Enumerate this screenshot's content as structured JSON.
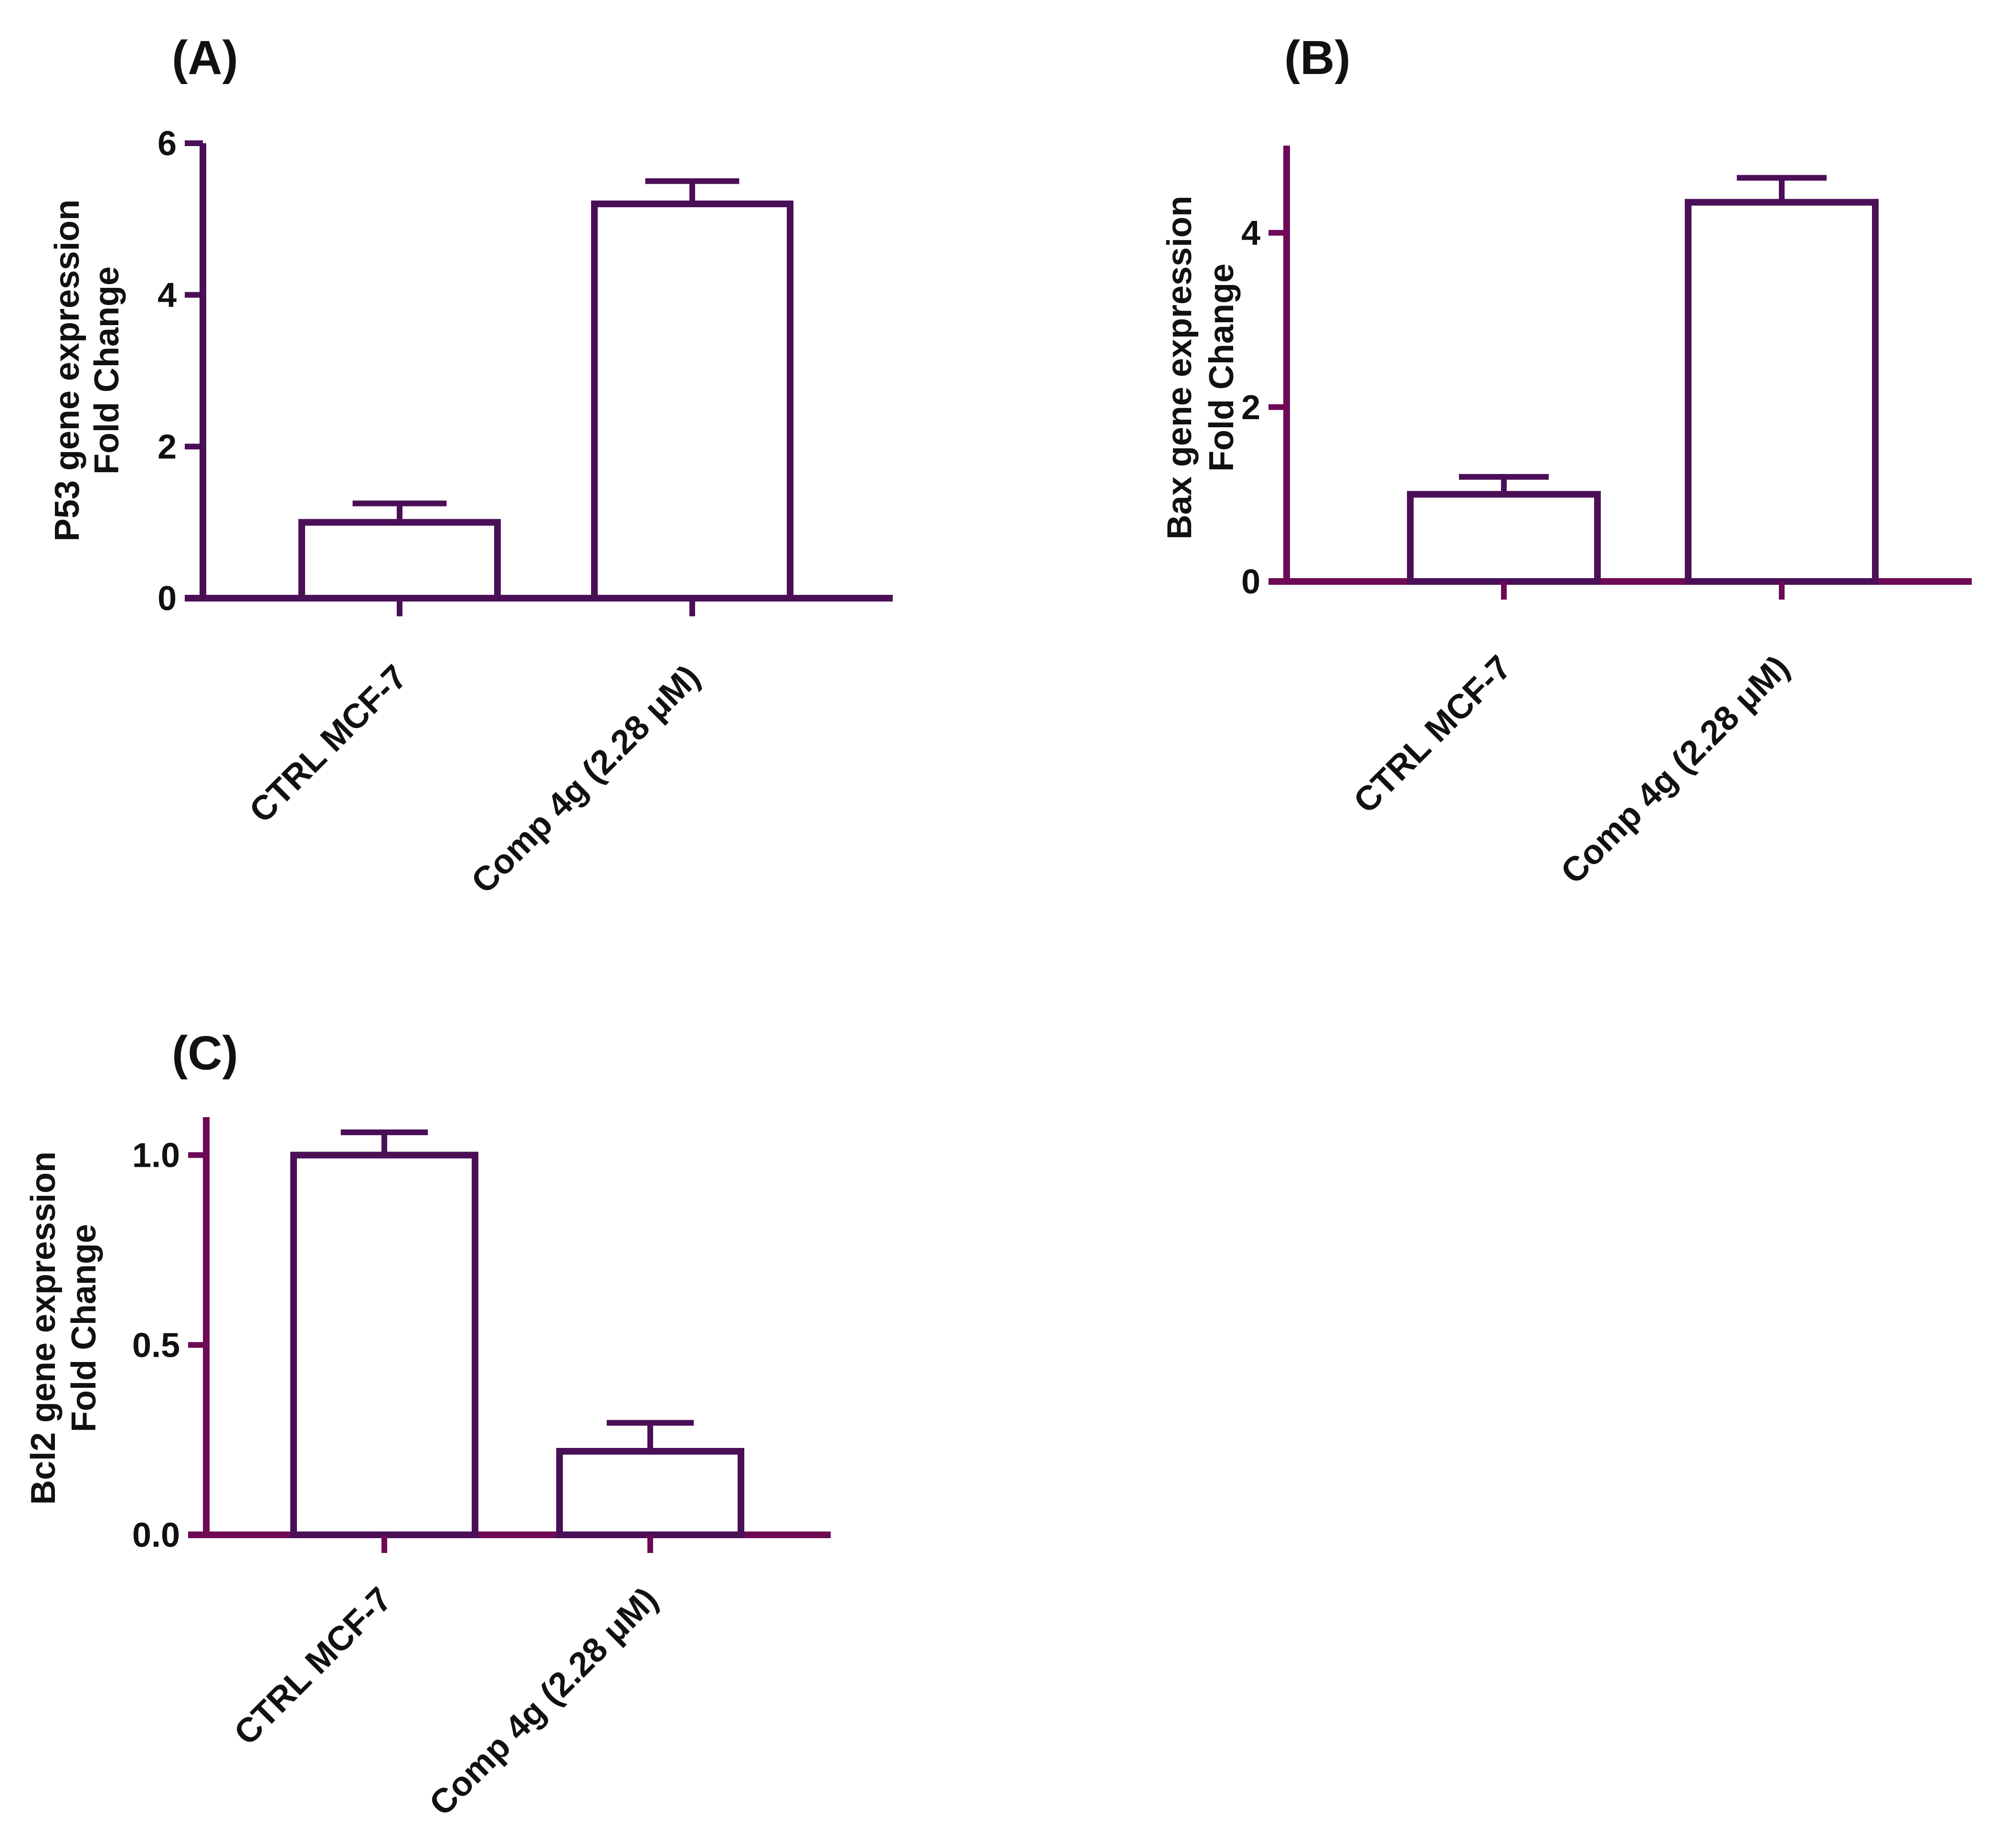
{
  "colors": {
    "bar_outline": "#4b0f58",
    "axis_a": "#4b0f58",
    "axis_bc": "#6e0a55",
    "bar_fill": "#ffffff",
    "text": "#111111"
  },
  "chart_data": [
    {
      "type": "bar",
      "panel": "(A)",
      "categories": [
        "CTRL MCF-7",
        "Comp 4g (2.28 μM)"
      ],
      "values": [
        1.0,
        5.2
      ],
      "errors": [
        0.25,
        0.3
      ],
      "ylabel_line1": "P53 gene expression",
      "ylabel_line2": "Fold Change",
      "ylim": [
        0,
        6
      ],
      "yticks": [
        0,
        2,
        4,
        6
      ],
      "ytick_labels": [
        "0",
        "2",
        "4",
        "6"
      ],
      "xlabel": ""
    },
    {
      "type": "bar",
      "panel": "(B)",
      "categories": [
        "CTRL MCF-7",
        "Comp 4g (2.28 μM)"
      ],
      "values": [
        1.0,
        4.35
      ],
      "errors": [
        0.2,
        0.28
      ],
      "ylabel_line1": "Bax gene expression",
      "ylabel_line2": "Fold Change",
      "ylim": [
        0,
        5
      ],
      "yticks": [
        0,
        2,
        4
      ],
      "ytick_labels": [
        "0",
        "2",
        "4"
      ],
      "xlabel": ""
    },
    {
      "type": "bar",
      "panel": "(C)",
      "categories": [
        "CTRL MCF-7",
        "Comp 4g (2.28 μM)"
      ],
      "values": [
        1.0,
        0.22
      ],
      "errors": [
        0.06,
        0.075
      ],
      "ylabel_line1": "Bcl2 gene expression",
      "ylabel_line2": "Fold Change",
      "ylim": [
        0,
        1.1
      ],
      "yticks": [
        0,
        0.5,
        1.0
      ],
      "ytick_labels": [
        "0.0",
        "0.5",
        "1.0"
      ],
      "xlabel": ""
    }
  ]
}
